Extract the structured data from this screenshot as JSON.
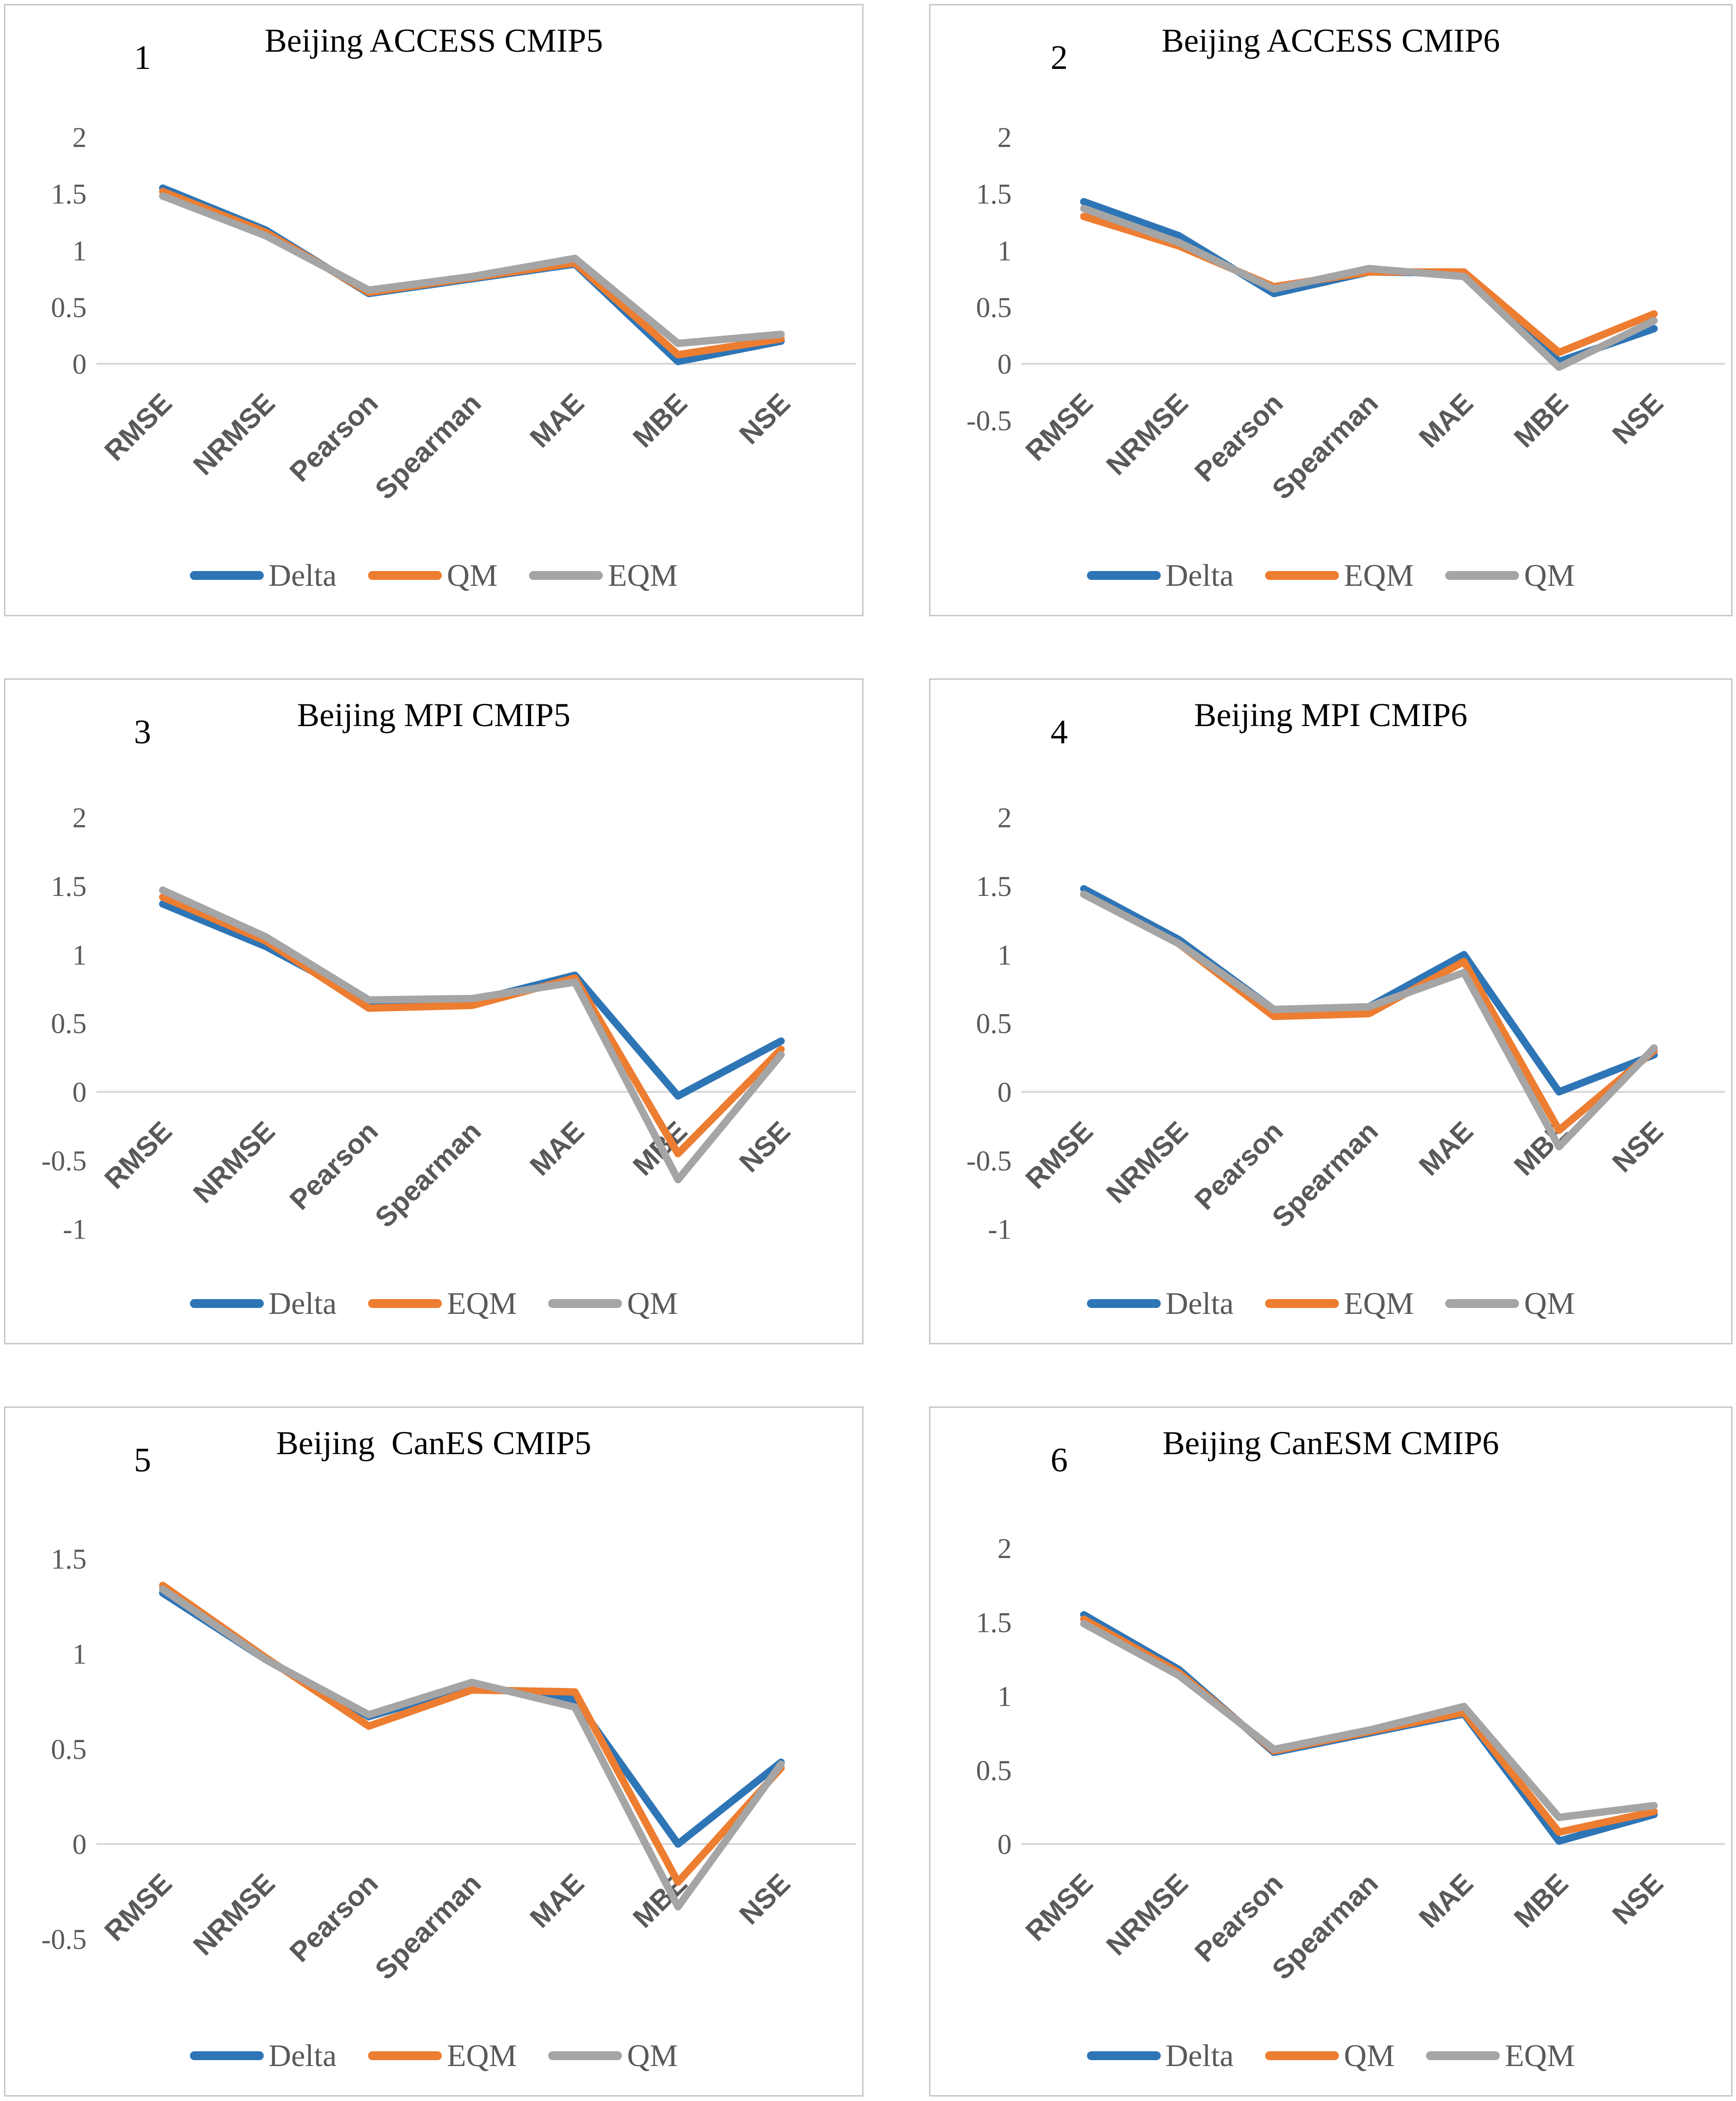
{
  "style": {
    "palette": [
      "#2E75B6",
      "#ED7D31",
      "#A5A5A5"
    ],
    "axis_line_color": "#D9D9D9",
    "tick_text_color": "#595959",
    "category_text_color": "#595959",
    "title_text_color": "#000000",
    "panel_border_color": "#C9C9C9"
  },
  "chart_data": [
    {
      "type": "line",
      "panel_number": "1",
      "title": "Beijing ACCESS CMIP5",
      "categories": [
        "RMSE",
        "NRMSE",
        "Pearson",
        "Spearman",
        "MAE",
        "MBE",
        "NSE"
      ],
      "yticks": [
        2,
        1.5,
        1,
        0.5,
        0
      ],
      "ylim": [
        0,
        2
      ],
      "legend_position": "bottom",
      "grid": false,
      "series": [
        {
          "name": "Delta",
          "values": [
            1.55,
            1.18,
            0.62,
            0.75,
            0.88,
            0.02,
            0.2
          ]
        },
        {
          "name": "QM",
          "values": [
            1.52,
            1.16,
            0.63,
            0.76,
            0.89,
            0.08,
            0.22
          ]
        },
        {
          "name": "EQM",
          "values": [
            1.48,
            1.13,
            0.65,
            0.77,
            0.93,
            0.18,
            0.26
          ]
        }
      ]
    },
    {
      "type": "line",
      "panel_number": "2",
      "title": "Beijing ACCESS CMIP6",
      "categories": [
        "RMSE",
        "NRMSE",
        "Pearson",
        "Spearman",
        "MAE",
        "MBE",
        "NSE"
      ],
      "yticks": [
        2,
        1.5,
        1,
        0.5,
        0,
        -0.5
      ],
      "ylim": [
        -0.5,
        2
      ],
      "legend_position": "bottom",
      "grid": false,
      "series": [
        {
          "name": "Delta",
          "values": [
            1.43,
            1.13,
            0.62,
            0.81,
            0.8,
            0.02,
            0.31
          ]
        },
        {
          "name": "EQM",
          "values": [
            1.3,
            1.04,
            0.68,
            0.81,
            0.81,
            0.1,
            0.44
          ]
        },
        {
          "name": "QM",
          "values": [
            1.37,
            1.07,
            0.66,
            0.84,
            0.77,
            -0.03,
            0.38
          ]
        }
      ]
    },
    {
      "type": "line",
      "panel_number": "3",
      "title": "Beijing MPI CMIP5",
      "categories": [
        "RMSE",
        "NRMSE",
        "Pearson",
        "Spearman",
        "MAE",
        "MBE",
        "NSE"
      ],
      "yticks": [
        2,
        1.5,
        1,
        0.5,
        0,
        -0.5,
        -1
      ],
      "ylim": [
        -1,
        2
      ],
      "legend_position": "bottom",
      "grid": false,
      "series": [
        {
          "name": "Delta",
          "values": [
            1.37,
            1.06,
            0.66,
            0.66,
            0.85,
            -0.03,
            0.37
          ]
        },
        {
          "name": "EQM",
          "values": [
            1.42,
            1.1,
            0.61,
            0.63,
            0.83,
            -0.45,
            0.31
          ]
        },
        {
          "name": "QM",
          "values": [
            1.47,
            1.13,
            0.67,
            0.68,
            0.8,
            -0.64,
            0.27
          ]
        }
      ]
    },
    {
      "type": "line",
      "panel_number": "4",
      "title": "Beijing MPI CMIP6",
      "categories": [
        "RMSE",
        "NRMSE",
        "Pearson",
        "Spearman",
        "MAE",
        "MBE",
        "NSE"
      ],
      "yticks": [
        2,
        1.5,
        1,
        0.5,
        0,
        -0.5,
        -1
      ],
      "ylim": [
        -1,
        2
      ],
      "legend_position": "bottom",
      "grid": false,
      "series": [
        {
          "name": "Delta",
          "values": [
            1.48,
            1.11,
            0.6,
            0.62,
            1.0,
            0.0,
            0.27
          ]
        },
        {
          "name": "EQM",
          "values": [
            1.44,
            1.08,
            0.55,
            0.57,
            0.95,
            -0.28,
            0.3
          ]
        },
        {
          "name": "QM",
          "values": [
            1.44,
            1.08,
            0.6,
            0.62,
            0.87,
            -0.4,
            0.32
          ]
        }
      ]
    },
    {
      "type": "line",
      "panel_number": "5",
      "title": "Beijing  CanES CMIP5",
      "categories": [
        "RMSE",
        "NRMSE",
        "Pearson",
        "Spearman",
        "MAE",
        "MBE",
        "NSE"
      ],
      "yticks": [
        1.5,
        1,
        0.5,
        0,
        -0.5
      ],
      "ylim": [
        -0.5,
        1.5
      ],
      "legend_position": "bottom",
      "grid": false,
      "series": [
        {
          "name": "Delta",
          "values": [
            1.32,
            0.97,
            0.67,
            0.83,
            0.76,
            0.0,
            0.43
          ]
        },
        {
          "name": "EQM",
          "values": [
            1.36,
            0.98,
            0.62,
            0.81,
            0.8,
            -0.2,
            0.4
          ]
        },
        {
          "name": "QM",
          "values": [
            1.34,
            0.97,
            0.68,
            0.85,
            0.72,
            -0.33,
            0.42
          ]
        }
      ]
    },
    {
      "type": "line",
      "panel_number": "6",
      "title": "Beijing CanESM CMIP6",
      "categories": [
        "RMSE",
        "NRMSE",
        "Pearson",
        "Spearman",
        "MAE",
        "MBE",
        "NSE"
      ],
      "yticks": [
        2,
        1.5,
        1,
        0.5,
        0
      ],
      "ylim": [
        0,
        2
      ],
      "legend_position": "bottom",
      "grid": false,
      "series": [
        {
          "name": "Delta",
          "values": [
            1.55,
            1.18,
            0.62,
            0.75,
            0.88,
            0.02,
            0.2
          ]
        },
        {
          "name": "QM",
          "values": [
            1.52,
            1.16,
            0.63,
            0.76,
            0.89,
            0.08,
            0.22
          ]
        },
        {
          "name": "EQM",
          "values": [
            1.49,
            1.14,
            0.64,
            0.77,
            0.93,
            0.18,
            0.26
          ]
        }
      ]
    }
  ]
}
